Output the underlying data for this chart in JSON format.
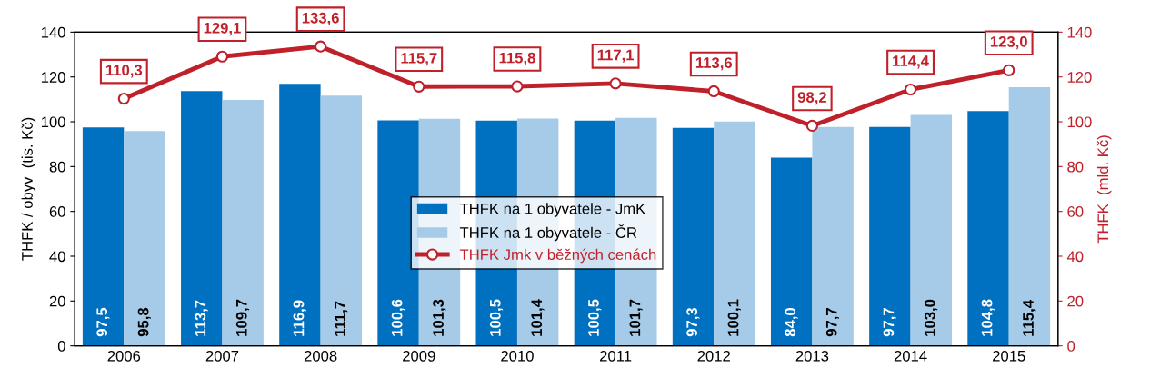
{
  "chart_data": {
    "type": "bar",
    "categories": [
      "2006",
      "2007",
      "2008",
      "2009",
      "2010",
      "2011",
      "2012",
      "2013",
      "2014",
      "2015"
    ],
    "ylabel": "THFK / obyv  (tis. Kč)",
    "y2label": "THFK  (mld. Kč)",
    "ylim": [
      0,
      140
    ],
    "yticks": [
      0,
      20,
      40,
      60,
      80,
      100,
      120,
      140
    ],
    "y2lim": [
      0,
      140
    ],
    "y2ticks": [
      0,
      20,
      40,
      60,
      80,
      100,
      120,
      140
    ],
    "legend": "center",
    "grid": false,
    "series": [
      {
        "name": "THFK na 1 obyvatele - JmK",
        "color": "#0070c0",
        "values": [
          97.5,
          113.7,
          116.9,
          100.6,
          100.5,
          100.5,
          97.3,
          84.0,
          97.7,
          104.8
        ],
        "value_labels": [
          "97,5",
          "113,7",
          "116,9",
          "100,6",
          "100,5",
          "100,5",
          "97,3",
          "84,0",
          "97,7",
          "104,8"
        ]
      },
      {
        "name": "THFK na 1 obyvatele - ČR",
        "color": "#a6cbe8",
        "values": [
          95.8,
          109.7,
          111.7,
          101.3,
          101.4,
          101.7,
          100.1,
          97.7,
          103.0,
          115.4
        ],
        "value_labels": [
          "95,8",
          "109,7",
          "111,7",
          "101,3",
          "101,4",
          "101,7",
          "100,1",
          "97,7",
          "103,0",
          "115,4"
        ]
      },
      {
        "name": "THFK Jmk v běžných cenách",
        "type": "line",
        "axis": "y2",
        "color": "#c0202a",
        "marker": "circle",
        "line_style": "solid",
        "values": [
          110.3,
          129.1,
          133.6,
          115.7,
          115.8,
          117.1,
          113.6,
          98.2,
          114.4,
          123.0
        ],
        "value_labels": [
          "110,3",
          "129,1",
          "133,6",
          "115,7",
          "115,8",
          "117,1",
          "113,6",
          "98,2",
          "114,4",
          "123,0"
        ]
      }
    ]
  }
}
